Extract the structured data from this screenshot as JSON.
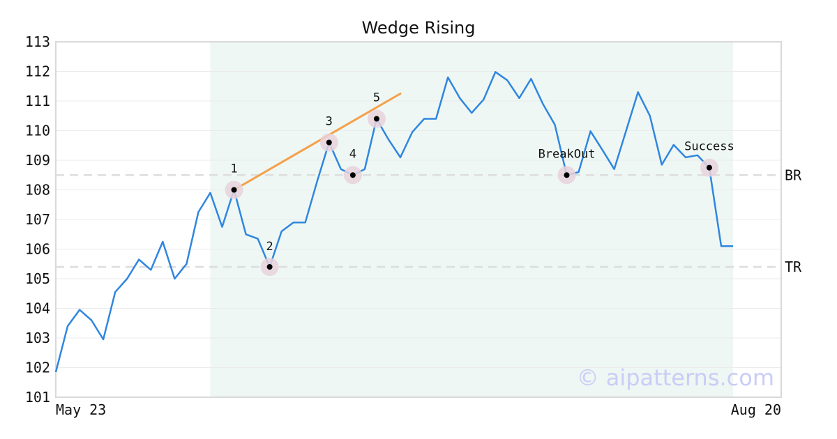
{
  "chart_data": {
    "type": "line",
    "title": "Wedge Rising",
    "xlabel": "",
    "ylabel": "",
    "ylim": [
      101,
      113
    ],
    "yticks": [
      101,
      102,
      103,
      104,
      105,
      106,
      107,
      108,
      109,
      110,
      111,
      112,
      113
    ],
    "x_tick_labels": [
      "May 23",
      "Aug 20"
    ],
    "grid": "horizontal",
    "colors": {
      "line": "#2f86e0",
      "trendline": "#f5a04a",
      "pattern_zone": "#eef7f3",
      "marker_halo": "#e8d2da",
      "level_line": "#dddddd"
    },
    "series": [
      {
        "values": [
          101.85,
          103.4,
          103.95,
          103.6,
          102.95,
          104.55,
          105.0,
          105.65,
          105.3,
          106.25,
          105.0,
          105.5,
          107.25,
          107.9,
          106.75,
          108.0,
          106.5,
          106.35,
          105.4,
          106.6,
          106.9,
          106.9,
          108.3,
          109.6,
          108.7,
          108.5,
          108.7,
          110.4,
          109.7,
          109.1,
          109.95,
          110.4,
          110.4,
          111.8,
          111.1,
          110.6,
          111.05,
          111.98,
          111.7,
          111.1,
          111.75,
          110.9,
          110.2,
          108.5,
          108.6,
          109.98,
          109.35,
          108.7,
          110.0,
          111.3,
          110.5,
          108.85,
          109.52,
          109.1,
          109.17,
          108.75,
          106.1,
          106.1
        ]
      }
    ],
    "pattern_zone": {
      "start_index": 13,
      "end_index": 57
    },
    "trendline": {
      "from": {
        "index": 15,
        "value": 108.0
      },
      "to": {
        "index": 29,
        "value": 111.25
      }
    },
    "points": [
      {
        "label": "1",
        "index": 15,
        "value": 108.0
      },
      {
        "label": "2",
        "index": 18,
        "value": 105.4
      },
      {
        "label": "3",
        "index": 23,
        "value": 109.6
      },
      {
        "label": "4",
        "index": 25,
        "value": 108.5
      },
      {
        "label": "5",
        "index": 27,
        "value": 110.4
      },
      {
        "label": "BreakOut",
        "index": 43,
        "value": 108.5
      },
      {
        "label": "Success",
        "index": 55,
        "value": 108.75
      }
    ],
    "levels": [
      {
        "label": "BR",
        "value": 108.5
      },
      {
        "label": "TR",
        "value": 105.4
      }
    ],
    "watermark": "© aipatterns.com"
  }
}
